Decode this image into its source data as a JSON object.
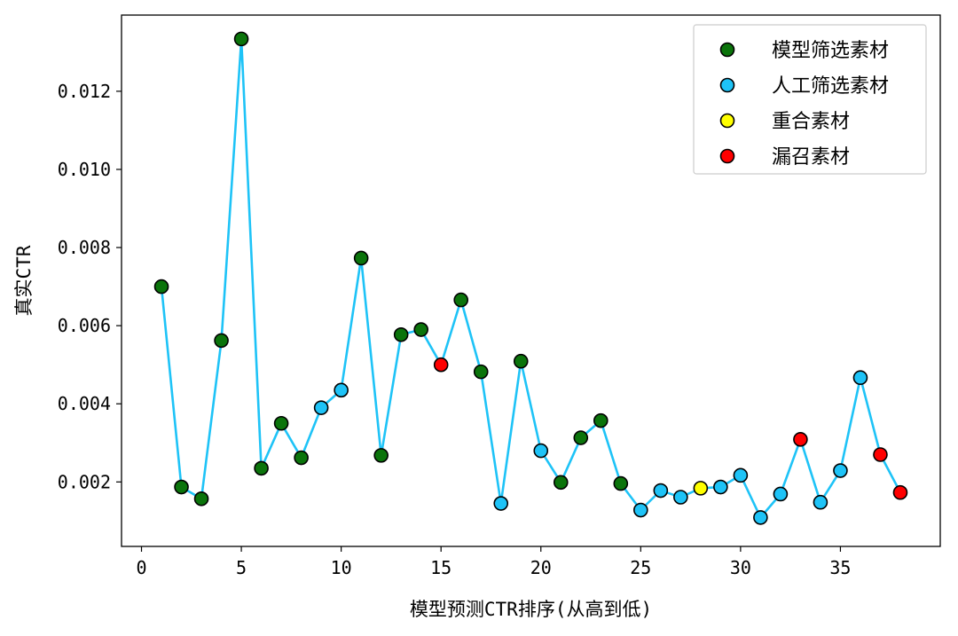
{
  "chart_data": {
    "type": "scatter",
    "title": "",
    "xlabel": "模型预测CTR排序(从高到低)",
    "ylabel": "真实CTR",
    "xlim": [
      -1,
      40
    ],
    "ylim": [
      0.00035,
      0.01395
    ],
    "xticks": [
      0,
      5,
      10,
      15,
      20,
      25,
      30,
      35
    ],
    "xtick_labels": [
      "0",
      "5",
      "10",
      "15",
      "20",
      "25",
      "30",
      "35"
    ],
    "yticks": [
      0.002,
      0.004,
      0.006,
      0.008,
      0.01,
      0.012
    ],
    "ytick_labels": [
      "0.002",
      "0.004",
      "0.006",
      "0.008",
      "0.010",
      "0.012"
    ],
    "grid": false,
    "legend_position": "top-right",
    "line_color": "#1ec3f7",
    "categories": [
      {
        "key": "model",
        "name": "模型筛选素材",
        "color": "#0b740b"
      },
      {
        "key": "manual",
        "name": "人工筛选素材",
        "color": "#1ec3f7"
      },
      {
        "key": "overlap",
        "name": "重合素材",
        "color": "#ffff00"
      },
      {
        "key": "missed",
        "name": "漏召素材",
        "color": "#ff0000"
      }
    ],
    "points": [
      {
        "x": 1,
        "y": 0.007,
        "category": "model"
      },
      {
        "x": 2,
        "y": 0.00187,
        "category": "model"
      },
      {
        "x": 3,
        "y": 0.00157,
        "category": "model"
      },
      {
        "x": 4,
        "y": 0.00562,
        "category": "model"
      },
      {
        "x": 5,
        "y": 0.01334,
        "category": "model"
      },
      {
        "x": 6,
        "y": 0.00235,
        "category": "model"
      },
      {
        "x": 7,
        "y": 0.0035,
        "category": "model"
      },
      {
        "x": 8,
        "y": 0.00262,
        "category": "model"
      },
      {
        "x": 9,
        "y": 0.0039,
        "category": "manual"
      },
      {
        "x": 10,
        "y": 0.00435,
        "category": "manual"
      },
      {
        "x": 11,
        "y": 0.00773,
        "category": "model"
      },
      {
        "x": 12,
        "y": 0.00268,
        "category": "model"
      },
      {
        "x": 13,
        "y": 0.00577,
        "category": "model"
      },
      {
        "x": 14,
        "y": 0.0059,
        "category": "model"
      },
      {
        "x": 15,
        "y": 0.005,
        "category": "missed"
      },
      {
        "x": 16,
        "y": 0.00666,
        "category": "model"
      },
      {
        "x": 17,
        "y": 0.00482,
        "category": "model"
      },
      {
        "x": 18,
        "y": 0.00145,
        "category": "manual"
      },
      {
        "x": 19,
        "y": 0.00509,
        "category": "model"
      },
      {
        "x": 20,
        "y": 0.0028,
        "category": "manual"
      },
      {
        "x": 21,
        "y": 0.00199,
        "category": "model"
      },
      {
        "x": 22,
        "y": 0.00313,
        "category": "model"
      },
      {
        "x": 23,
        "y": 0.00357,
        "category": "model"
      },
      {
        "x": 24,
        "y": 0.00196,
        "category": "model"
      },
      {
        "x": 25,
        "y": 0.00128,
        "category": "manual"
      },
      {
        "x": 26,
        "y": 0.00178,
        "category": "manual"
      },
      {
        "x": 27,
        "y": 0.00161,
        "category": "manual"
      },
      {
        "x": 28,
        "y": 0.00184,
        "category": "overlap"
      },
      {
        "x": 29,
        "y": 0.00187,
        "category": "manual"
      },
      {
        "x": 30,
        "y": 0.00217,
        "category": "manual"
      },
      {
        "x": 31,
        "y": 0.00109,
        "category": "manual"
      },
      {
        "x": 32,
        "y": 0.00169,
        "category": "manual"
      },
      {
        "x": 33,
        "y": 0.00309,
        "category": "missed"
      },
      {
        "x": 34,
        "y": 0.00148,
        "category": "manual"
      },
      {
        "x": 35,
        "y": 0.00229,
        "category": "manual"
      },
      {
        "x": 36,
        "y": 0.00467,
        "category": "manual"
      },
      {
        "x": 37,
        "y": 0.0027,
        "category": "missed"
      },
      {
        "x": 38,
        "y": 0.00173,
        "category": "missed"
      }
    ]
  }
}
